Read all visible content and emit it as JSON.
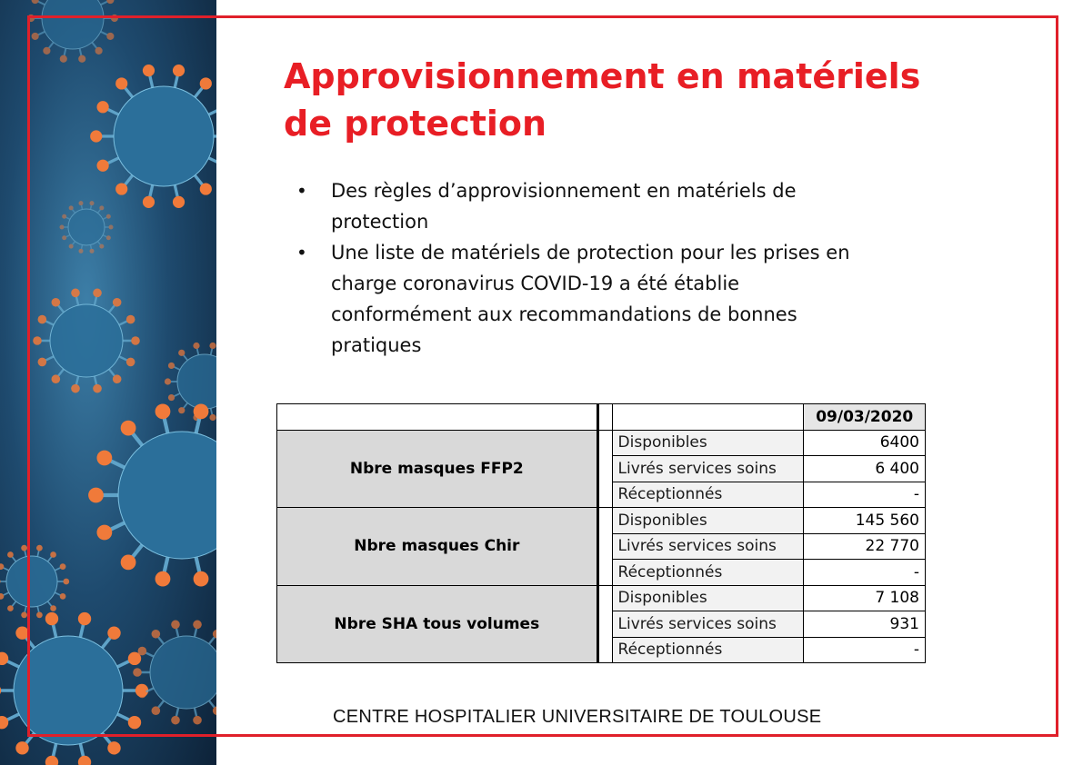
{
  "slide": {
    "title_line1": "Approvisionnement en matériels",
    "title_line2": "de protection",
    "bullets": [
      "Des règles d’approvisionnement en matériels de protection",
      "Une liste de matériels de protection pour les prises en charge coronavirus COVID-19 a été établie conformément aux recommandations de bonnes pratiques"
    ],
    "footer": "CENTRE HOSPITALIER UNIVERSITAIRE DE TOULOUSE"
  },
  "table": {
    "date_header": "09/03/2020",
    "groups": [
      {
        "name": "Nbre masques FFP2",
        "rows": [
          {
            "label": "Disponibles",
            "value": "6400"
          },
          {
            "label": "Livrés services soins",
            "value": "6 400"
          },
          {
            "label": "Réceptionnés",
            "value": "-"
          }
        ]
      },
      {
        "name": "Nbre masques Chir",
        "rows": [
          {
            "label": "Disponibles",
            "value": "145 560"
          },
          {
            "label": "Livrés services soins",
            "value": "22 770"
          },
          {
            "label": "Réceptionnés",
            "value": "-"
          }
        ]
      },
      {
        "name": "Nbre SHA tous volumes",
        "rows": [
          {
            "label": "Disponibles",
            "value": "7 108"
          },
          {
            "label": "Livrés services soins",
            "value": "931"
          },
          {
            "label": "Réceptionnés",
            "value": "-"
          }
        ]
      }
    ]
  },
  "colors": {
    "accent_red": "#e81e25",
    "frame_red": "#e0202a",
    "virus_body": "#2b6f9a",
    "virus_spike": "#f07a3a"
  },
  "decorations": {
    "side_image": "coronavirus-illustration"
  }
}
